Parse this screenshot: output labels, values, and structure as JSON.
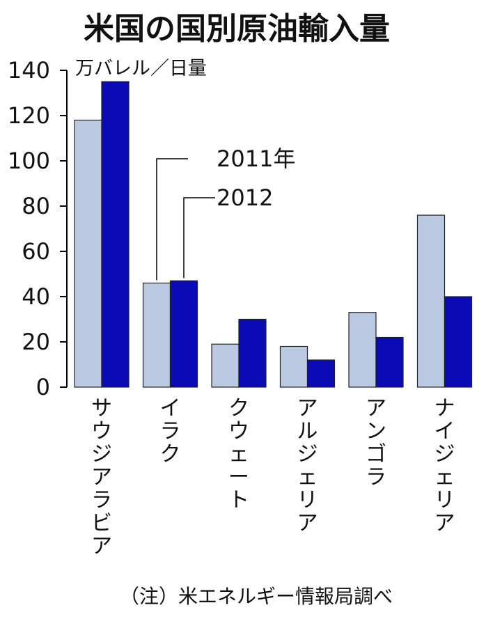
{
  "chart_data": {
    "type": "bar",
    "title": "米国の国別原油輸入量",
    "unit": "万バレル／日量",
    "categories": [
      "サウジアラビア",
      "イラク",
      "クウェート",
      "アルジェリア",
      "アンゴラ",
      "ナイジェリア"
    ],
    "series": [
      {
        "name": "2011年",
        "values": [
          118,
          46,
          19,
          18,
          33,
          76
        ]
      },
      {
        "name": "2012",
        "values": [
          135,
          47,
          30,
          12,
          22,
          40
        ]
      }
    ],
    "ylim": [
      0,
      140
    ],
    "yticks": [
      0,
      20,
      40,
      60,
      80,
      100,
      120,
      140
    ],
    "grid": false,
    "legend": "leader-lines on Iraq bars"
  },
  "colors": {
    "series_2011": "#bac8e2",
    "series_2012": "#0b0bb5",
    "outline": "#222222",
    "background": "#ffffff"
  },
  "note": "（注）米エネルギー情報局調べ"
}
